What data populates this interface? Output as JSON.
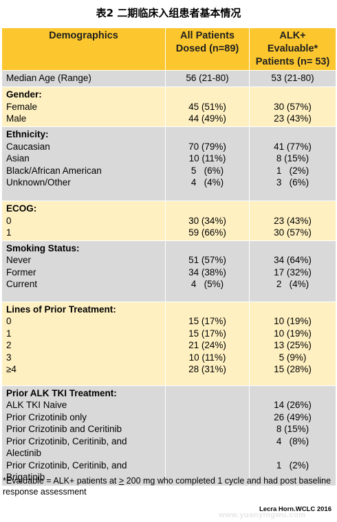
{
  "title": "表2 二期临床入组患者基本情况",
  "header": {
    "col1": "Demographics",
    "col2": "All Patients Dosed (n=89)",
    "col3": "ALK+ Evaluable* Patients (n= 53)"
  },
  "sections": [
    {
      "title": "Median Age (Range)",
      "bold": false,
      "items": [],
      "all": [
        "56 (21-80)"
      ],
      "alk": [
        "53 (21-80)"
      ]
    },
    {
      "title": "Gender:",
      "bold": true,
      "items": [
        "Female",
        "Male"
      ],
      "all": [
        "45 (51%)",
        "44 (49%)"
      ],
      "alk": [
        "30 (57%)",
        "23 (43%)"
      ]
    },
    {
      "title": "Ethnicity:",
      "bold": true,
      "items": [
        "Caucasian",
        "Asian",
        "Black/African American",
        "Unknown/Other"
      ],
      "all": [
        "70 (79%)",
        "10 (11%)",
        "5   (6%)",
        "4   (4%)"
      ],
      "alk": [
        "41 (77%)",
        "8 (15%)",
        "1   (2%)",
        "3   (6%)"
      ]
    },
    {
      "title": "ECOG:",
      "bold": true,
      "items": [
        "0",
        "1"
      ],
      "all": [
        "30 (34%)",
        "59 (66%)"
      ],
      "alk": [
        "23 (43%)",
        "30 (57%)"
      ]
    },
    {
      "title": "Smoking Status:",
      "bold": true,
      "items": [
        "Never",
        "Former",
        "Current"
      ],
      "all": [
        "51 (57%)",
        "34 (38%)",
        "4   (5%)"
      ],
      "alk": [
        "34 (64%)",
        "17 (32%)",
        "2   (4%)"
      ]
    },
    {
      "title": "Lines of Prior Treatment:",
      "bold": true,
      "items": [
        "0",
        "1",
        "2",
        "3",
        "≥4"
      ],
      "all": [
        "15 (17%)",
        "15 (17%)",
        "21 (24%)",
        "10 (11%)",
        "28 (31%)"
      ],
      "alk": [
        "10 (19%)",
        "10 (19%)",
        "13 (25%)",
        "5 (9%)",
        "15 (28%)"
      ]
    },
    {
      "title": "Prior ALK  TKI Treatment:",
      "bold": true,
      "items": [
        "ALK TKI Naive",
        "Prior Crizotinib only",
        "Prior Crizotinib and Ceritinib",
        "Prior Crizotinib, Ceritinib, and Alectinib",
        "Prior Crizotinib, Ceritinib, and Brigatinib"
      ],
      "all": [],
      "alk": [
        "14 (26%)",
        "26 (49%)",
        "8 (15%)",
        "4   (8%)",
        "",
        "1   (2%)"
      ]
    }
  ],
  "footnote": {
    "before": "*Evaluable = ALK+ patients at ",
    "ge": ">",
    "after": " 200 mg who completed 1 cycle and had post baseline response assessment"
  },
  "credit": "Lecra Horn.WCLC 2016",
  "watermark": "www.yuanyingwu.com",
  "colors": {
    "header": "#fcc72e",
    "yellow_row": "#fef0c1",
    "gray_row": "#d9d9d9"
  }
}
